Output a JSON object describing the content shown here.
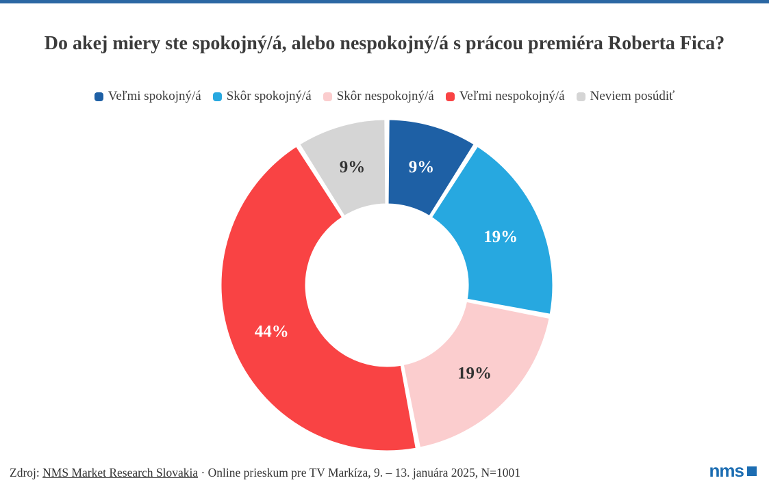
{
  "page": {
    "background_color": "#ffffff",
    "accent_bar_color": "#2B67A3"
  },
  "title": "Do akej miery ste spokojný/á, alebo nespokojný/á s prácou premiéra Roberta Fica?",
  "chart_data": {
    "type": "pie",
    "subtype": "donut",
    "title": "Do akej miery ste spokojný/á, alebo nespokojný/á s prácou premiéra Roberta Fica?",
    "legend_position": "top",
    "value_suffix": "%",
    "total": 100,
    "segments": [
      {
        "label": "Veľmi spokojný/á",
        "value": 9,
        "color": "#1E60A5",
        "label_color": "#ffffff"
      },
      {
        "label": "Skôr spokojný/á",
        "value": 19,
        "color": "#27A8E0",
        "label_color": "#ffffff"
      },
      {
        "label": "Skôr nespokojný/á",
        "value": 19,
        "color": "#FBCDCE",
        "label_color": "#333333"
      },
      {
        "label": "Veľmi nespokojný/á",
        "value": 44,
        "color": "#F94344",
        "label_color": "#ffffff"
      },
      {
        "label": "Neviem posúdiť",
        "value": 9,
        "color": "#D5D5D5",
        "label_color": "#333333"
      }
    ]
  },
  "footer": {
    "source_prefix": "Zdroj: ",
    "source_link": "NMS Market Research Slovakia",
    "source_suffix": " · Online prieskum pre TV Markíza, 9. – 13. januára 2025, N=1001",
    "logo_text": "nms",
    "logo_color": "#1C6DB2"
  }
}
